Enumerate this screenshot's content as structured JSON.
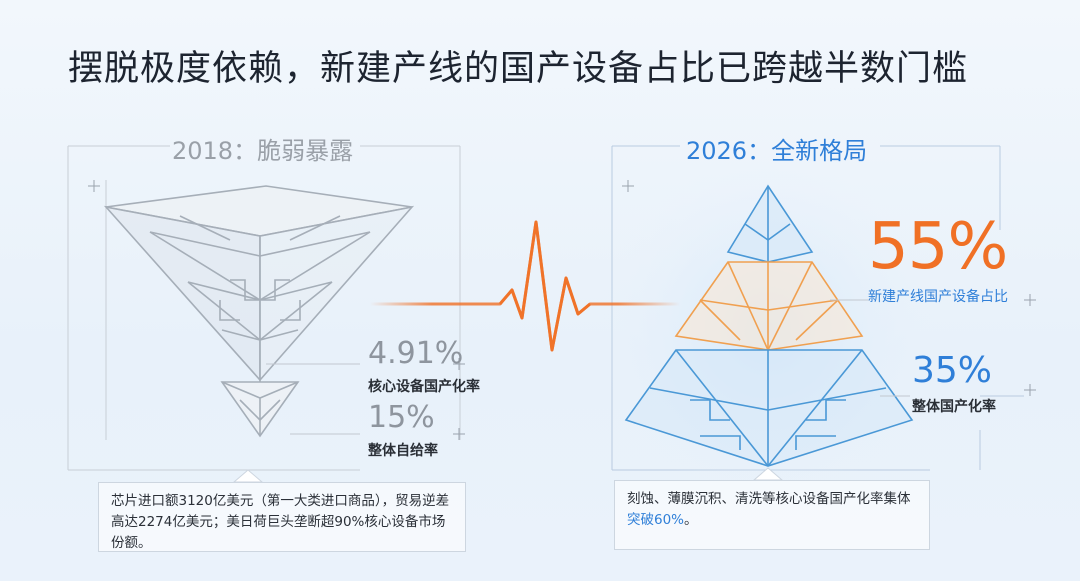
{
  "title": "摆脱极度依赖，新建产线的国产设备占比已跨越半数门槛",
  "left": {
    "heading": "2018：脆弱暴露",
    "stat1_value": "4.91%",
    "stat1_label": "核心设备国产化率",
    "stat2_value": "15%",
    "stat2_label": "整体自给率",
    "note": "芯片进口额3120亿美元（第一大类进口商品），贸易逆差高达2274亿美元；美日荷巨头垄断超90%核心设备市场份额。"
  },
  "right": {
    "heading": "2026：全新格局",
    "stat1_value": "55%",
    "stat1_label": "新建产线国产设备占比",
    "stat2_value": "35%",
    "stat2_label": "整体国产化率",
    "note_part1": "刻蚀、薄膜沉积、清洗等核心设备国产化率集体",
    "note_highlight": "突破60%",
    "note_part2": "。"
  },
  "colors": {
    "orange": "#f07025",
    "blue": "#2f7fd8",
    "gray": "#8e959e"
  }
}
